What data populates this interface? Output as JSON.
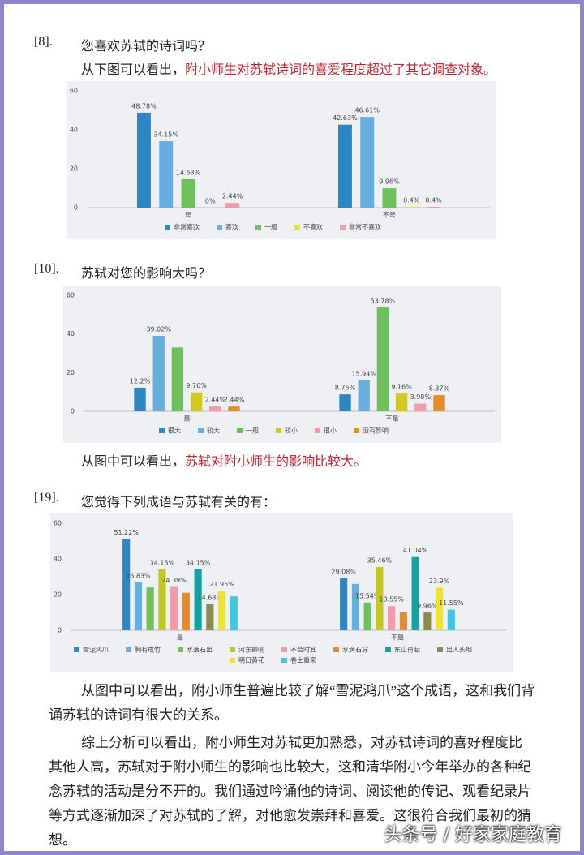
{
  "sections": [
    {
      "number": "[8].",
      "question": "您喜欢苏轼的诗词吗？",
      "note_lead": "从下图可以看出，",
      "note_highlight": "附小师生对苏轼诗词的喜爱程度超过了其它调查对象。"
    },
    {
      "number": "[10].",
      "question": "苏轼对您的影响大吗？",
      "note_lead": "从图中可以看出，",
      "note_highlight": "苏轼对附小师生的影响比较大。"
    },
    {
      "number": "[19].",
      "question": "您觉得下列成语与苏轼有关的有："
    }
  ],
  "paragraphs": [
    "从图中可以看出，附小师生普遍比较了解“雪泥鸿爪”这个成语，这和我们背诵苏轼的诗词有很大的关系。",
    "综上分析可以看出，附小师生对苏轼更加熟悉，对苏轼诗词的喜好程度比其他人高，苏轼对于附小师生的影响也比较大，这和清华附小今年举办的各种纪念苏轼的活动是分不开的。我们通过吟诵他的诗词、阅读他的传记、观看纪录片等方式逐渐加深了对苏轼的了解，对他愈发崇拜和喜爱。这很符合我们最初的猜想。"
  ],
  "watermark": "头条号 / 好家家庭教育",
  "chart_data": [
    {
      "type": "bar",
      "categories": [
        "是",
        "不是"
      ],
      "ylim": [
        0,
        60
      ],
      "yticks": [
        0,
        20,
        40,
        60
      ],
      "series": [
        {
          "name": "非常喜欢",
          "color": "#2b86c5",
          "values": [
            48.78,
            42.63
          ],
          "value_labels": [
            "48.78%",
            "42.63%"
          ]
        },
        {
          "name": "喜欢",
          "color": "#66aee0",
          "values": [
            34.15,
            46.61
          ],
          "value_labels": [
            "34.15%",
            "46.61%"
          ]
        },
        {
          "name": "一般",
          "color": "#6cc15a",
          "values": [
            14.63,
            9.96
          ],
          "value_labels": [
            "14.63%",
            "9.96%"
          ]
        },
        {
          "name": "不喜欢",
          "color": "#e8e030",
          "values": [
            0,
            0.4
          ],
          "value_labels": [
            "0%",
            "0.4%"
          ]
        },
        {
          "name": "非常不喜欢",
          "color": "#f29aa8",
          "values": [
            2.44,
            0.4
          ],
          "value_labels": [
            "2.44%",
            "0.4%"
          ]
        }
      ]
    },
    {
      "type": "bar",
      "categories": [
        "是",
        "不是"
      ],
      "ylim": [
        0,
        60
      ],
      "yticks": [
        0,
        20,
        40,
        60
      ],
      "series": [
        {
          "name": "很大",
          "color": "#2b86c5",
          "values": [
            12.2,
            8.76
          ],
          "value_labels": [
            "12.2%",
            "8.76%"
          ]
        },
        {
          "name": "较大",
          "color": "#66aee0",
          "values": [
            39.02,
            15.94
          ],
          "value_labels": [
            "39.02%",
            "15.94%"
          ]
        },
        {
          "name": "一般",
          "color": "#6cc15a",
          "values": [
            33,
            53.78
          ],
          "value_labels": [
            null,
            "53.78%"
          ]
        },
        {
          "name": "较小",
          "color": "#d4c820",
          "values": [
            9.76,
            9.16
          ],
          "value_labels": [
            "9.76%",
            "9.16%"
          ]
        },
        {
          "name": "很小",
          "color": "#f29aa8",
          "values": [
            2.44,
            3.98
          ],
          "value_labels": [
            "2.44%",
            "3.98%"
          ]
        },
        {
          "name": "没有影响",
          "color": "#e8892b",
          "values": [
            2.44,
            8.37
          ],
          "value_labels": [
            "2.44%",
            "8.37%"
          ]
        }
      ]
    },
    {
      "type": "bar",
      "categories": [
        "是",
        "不是"
      ],
      "ylim": [
        0,
        60
      ],
      "yticks": [
        0,
        20,
        40,
        60
      ],
      "series": [
        {
          "name": "雪泥鸿爪",
          "color": "#2b86c5",
          "values": [
            51.22,
            29.08
          ],
          "value_labels": [
            "51.22%",
            "29.08%"
          ]
        },
        {
          "name": "胸有成竹",
          "color": "#66aee0",
          "values": [
            26.83,
            26
          ],
          "value_labels": [
            "26.83%",
            null
          ]
        },
        {
          "name": "水落石出",
          "color": "#6cc15a",
          "values": [
            24,
            15.54
          ],
          "value_labels": [
            null,
            "15.54%"
          ]
        },
        {
          "name": "河东狮吼",
          "color": "#c2c81e",
          "values": [
            34.15,
            35.46
          ],
          "value_labels": [
            "34.15%",
            "35.46%"
          ]
        },
        {
          "name": "不合时宜",
          "color": "#f29aa8",
          "values": [
            24.39,
            13.55
          ],
          "value_labels": [
            "24.39%",
            "13.55%"
          ]
        },
        {
          "name": "水滴石穿",
          "color": "#e8892b",
          "values": [
            21,
            10
          ],
          "value_labels": [
            null,
            null
          ]
        },
        {
          "name": "东山再起",
          "color": "#17a0a4",
          "values": [
            34.15,
            41.04
          ],
          "value_labels": [
            "34.15%",
            "41.04%"
          ]
        },
        {
          "name": "出人头地",
          "color": "#8c8a4c",
          "values": [
            14.63,
            9.96
          ],
          "value_labels": [
            "14.63%",
            "9.96%"
          ]
        },
        {
          "name": "明日黄花",
          "color": "#f2e324",
          "values": [
            21.95,
            23.9
          ],
          "value_labels": [
            "21.95%",
            "23.9%"
          ]
        },
        {
          "name": "卷土重来",
          "color": "#45c4e2",
          "values": [
            19,
            11.55
          ],
          "value_labels": [
            null,
            "11.55%"
          ]
        }
      ]
    }
  ]
}
